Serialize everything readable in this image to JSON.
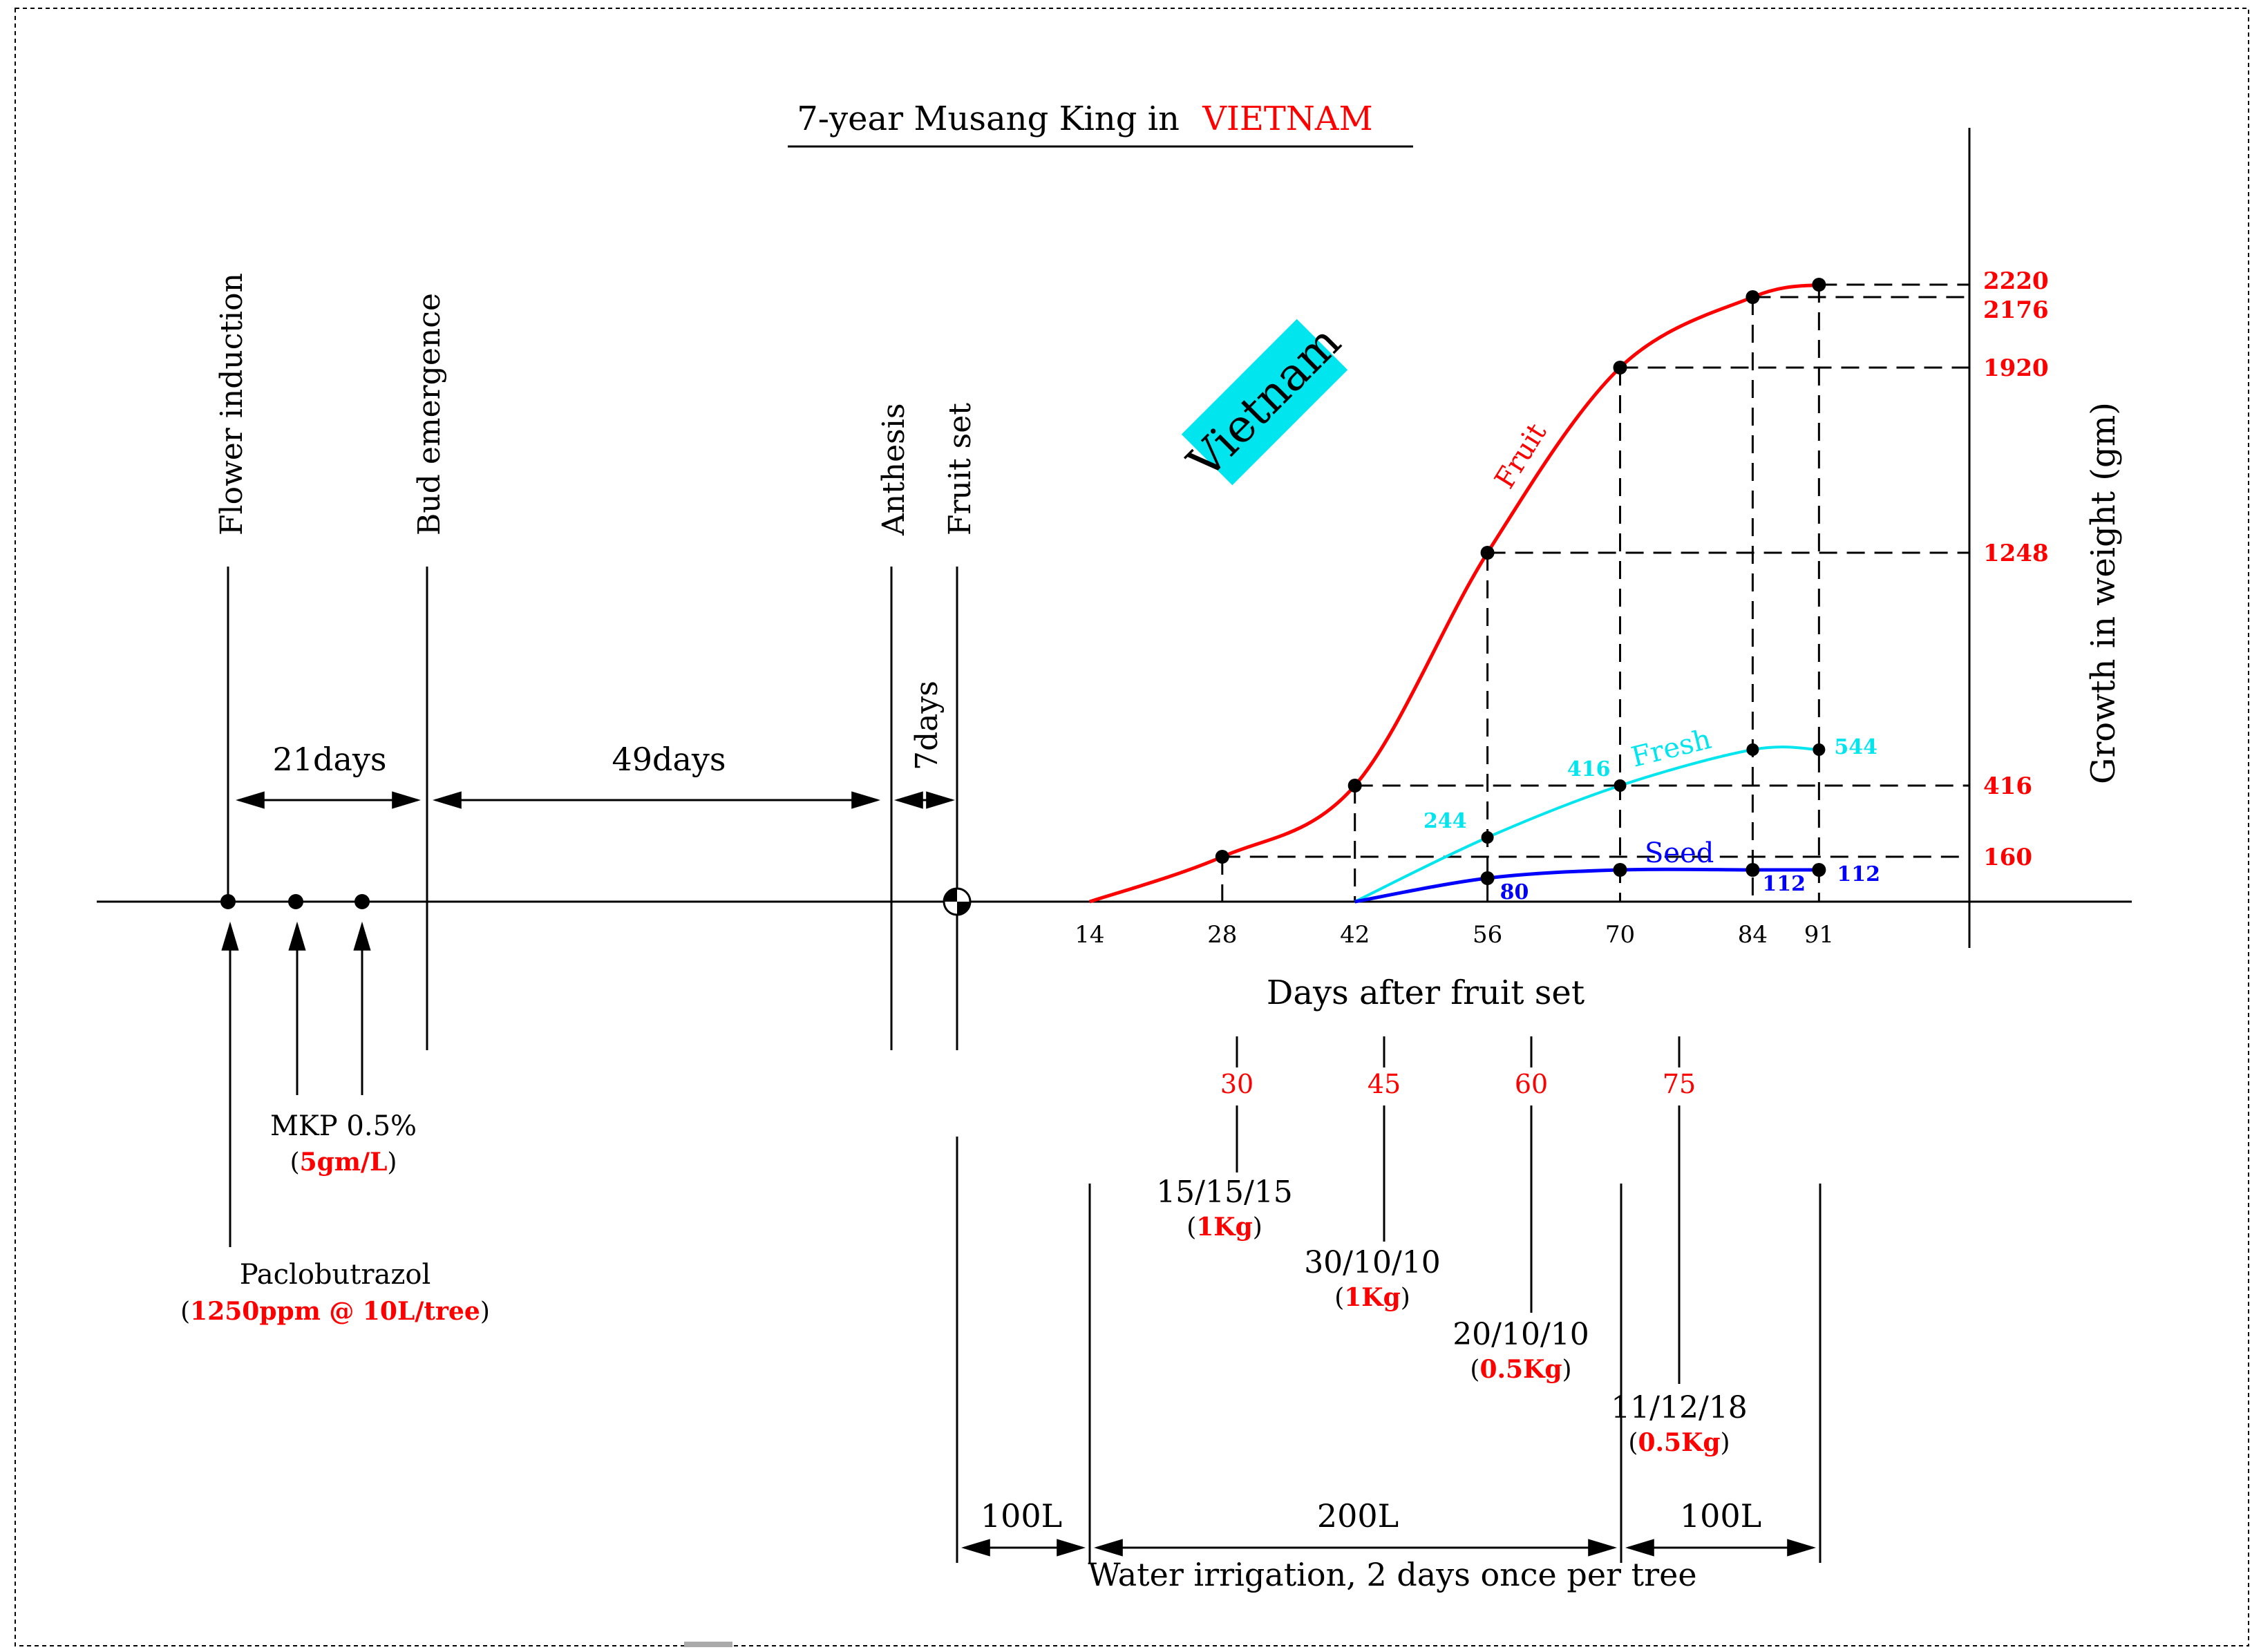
{
  "title": {
    "prefix": "7-year Musang King in",
    "highlight": "VIETNAM"
  },
  "badge": {
    "text": "Vietnam",
    "color": "#00e5ee"
  },
  "colors": {
    "red": "#ff0000",
    "cyan": "#00e5ee",
    "blue": "#0000ff",
    "black": "#000000"
  },
  "stages": {
    "flower_induction": "Flower induction",
    "bud_emergence": "Bud emergence",
    "anthesis": "Anthesis",
    "fruit_set": "Fruit set"
  },
  "intervals": {
    "d21": "21days",
    "d49": "49days",
    "d7": "7days"
  },
  "treatments": {
    "mkp_label": "MKP 0.5%",
    "mkp_dose": "5gm/L",
    "pbz_label": "Paclobutrazol",
    "pbz_dose": "1250ppm @ 10L/tree"
  },
  "chart_data": {
    "type": "line",
    "xlabel": "Days after fruit set",
    "ylabel": "Growth in weight (gm)",
    "x_ticks": [
      14,
      28,
      42,
      56,
      70,
      84,
      91
    ],
    "right_ticks": [
      2220,
      2176,
      1920,
      1248,
      416,
      160
    ],
    "series": [
      {
        "name": "Fruit",
        "color": "#ff0000",
        "x": [
          14,
          28,
          42,
          56,
          70,
          84,
          91
        ],
        "y": [
          0,
          160,
          416,
          1248,
          1920,
          2176,
          2220
        ]
      },
      {
        "name": "Fresh",
        "color": "#00e5ee",
        "x": [
          42,
          56,
          70,
          84,
          91
        ],
        "y": [
          0,
          244,
          416,
          544,
          544
        ],
        "labels": [
          "",
          "244",
          "416",
          "",
          "544"
        ]
      },
      {
        "name": "Seed",
        "color": "#0000ff",
        "x": [
          42,
          56,
          70,
          84,
          91
        ],
        "y": [
          0,
          80,
          112,
          112,
          112
        ],
        "labels": [
          "",
          "80",
          "",
          "112",
          "112"
        ]
      }
    ]
  },
  "fertilizer": {
    "days": [
      "30",
      "45",
      "60",
      "75"
    ],
    "formulas": [
      {
        "npk": "15/15/15",
        "amount": "1Kg"
      },
      {
        "npk": "30/10/10",
        "amount": "1Kg"
      },
      {
        "npk": "20/10/10",
        "amount": "0.5Kg"
      },
      {
        "npk": "11/12/18",
        "amount": "0.5Kg"
      }
    ]
  },
  "irrigation": {
    "volumes": [
      "100L",
      "200L",
      "100L"
    ],
    "caption": "Water irrigation, 2 days once per tree"
  }
}
